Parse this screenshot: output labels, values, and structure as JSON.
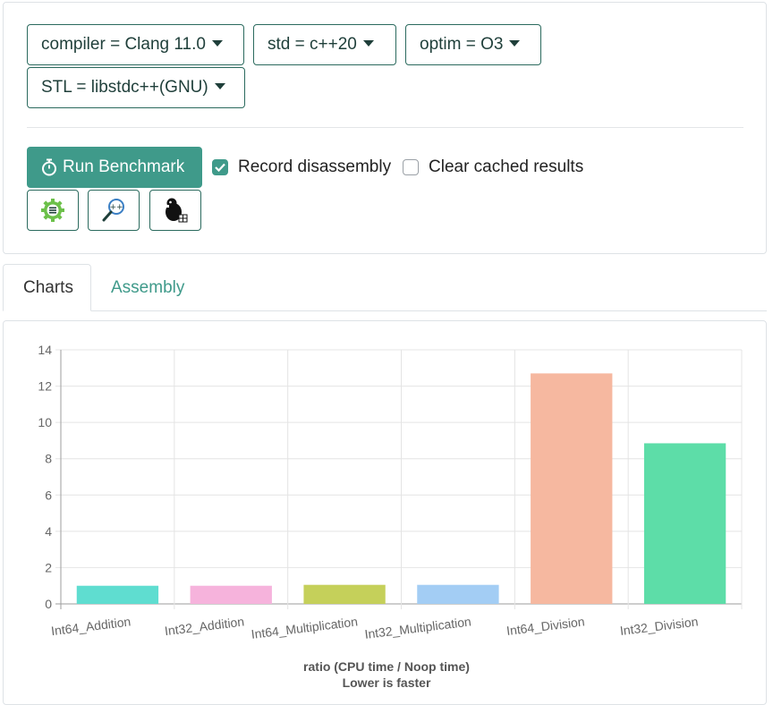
{
  "controls": {
    "compiler": "compiler = Clang 11.0",
    "std": "std = c++20",
    "optim": "optim = O3",
    "stl": "STL = libstdc++(GNU)"
  },
  "run_button": "Run Benchmark",
  "record_disassembly": {
    "label": "Record disassembly",
    "checked": true
  },
  "clear_cache": {
    "label": "Clear cached results",
    "checked": false
  },
  "tool_icons": [
    "gear-list-icon",
    "magnifier-cpp-icon",
    "beaver-icon"
  ],
  "tabs": [
    {
      "label": "Charts",
      "active": true
    },
    {
      "label": "Assembly",
      "active": false
    }
  ],
  "colors": {
    "accent": "#3f9a8a",
    "accent_border": "#2b6a5e",
    "tab_link": "#3f9a8a"
  },
  "chart_data": {
    "type": "bar",
    "categories": [
      "Int64_Addition",
      "Int32_Addition",
      "Int64_Multiplication",
      "Int32_Multiplication",
      "Int64_Division",
      "Int32_Division"
    ],
    "values": [
      1.0,
      1.0,
      1.05,
      1.05,
      12.7,
      8.85
    ],
    "colors": [
      "#5fddd0",
      "#f6b3dc",
      "#c5d05a",
      "#a3cdf4",
      "#f6b8a0",
      "#5ddda8"
    ],
    "xlabel": "ratio (CPU time / Noop time)",
    "xlabel2": "Lower is faster",
    "ylim": [
      0,
      14
    ],
    "yticks": [
      0,
      2,
      4,
      6,
      8,
      10,
      12,
      14
    ],
    "grid": true,
    "legend": "none"
  }
}
